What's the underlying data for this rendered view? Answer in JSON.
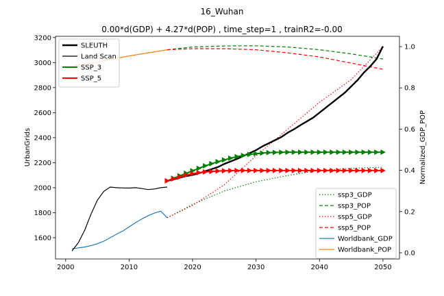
{
  "chart_data": {
    "type": "line",
    "suptitle": "16_Wuhan",
    "title": "0.00*d(GDP) + 4.27*d(POP) , time_step=1 , trainR2=-0.00",
    "xlabel": "",
    "ylabel": "UrbanGrids",
    "y2label": "Normalized_GDP_POP",
    "xlim": [
      1998.4,
      2052.6
    ],
    "ylim": [
      1430,
      3210
    ],
    "y2lim": [
      -0.03,
      1.05
    ],
    "xticks": [
      2000,
      2010,
      2020,
      2030,
      2040,
      2050
    ],
    "yticks": [
      1600,
      1800,
      2000,
      2200,
      2400,
      2600,
      2800,
      3000,
      3200
    ],
    "y2ticks": [
      "0.0",
      "0.2",
      "0.4",
      "0.6",
      "0.8",
      "1.0"
    ],
    "legend_left": {
      "position": "top-left",
      "entries": [
        "SLEUTH",
        "Land Scan",
        "SSP_3",
        "SSP_5"
      ]
    },
    "legend_right": {
      "position": "lower-right",
      "entries": [
        "ssp3_GDP",
        "ssp3_POP",
        "ssp5_GDP",
        "ssp5_POP",
        "Worldbank_GDP",
        "Worldbank_POP"
      ]
    },
    "colors": {
      "sleuth": "#000000",
      "landscan": "#000000",
      "ssp3": "#008000",
      "ssp5": "#ff0000",
      "worldbank_gdp": "#1f77b4",
      "worldbank_pop": "#ff7f0e"
    },
    "series_left_axis": [
      {
        "name": "SLEUTH",
        "x": [
          2016,
          2017,
          2018,
          2019,
          2020,
          2021,
          2022,
          2023,
          2024,
          2025,
          2026,
          2027,
          2028,
          2029,
          2030,
          2031,
          2032,
          2033,
          2034,
          2035,
          2036,
          2037,
          2038,
          2039,
          2040,
          2041,
          2042,
          2043,
          2044,
          2045,
          2046,
          2047,
          2048,
          2049,
          2050
        ],
        "y": [
          2055,
          2066,
          2080,
          2093,
          2102,
          2115,
          2132,
          2148,
          2165,
          2190,
          2210,
          2230,
          2253,
          2276,
          2300,
          2330,
          2355,
          2380,
          2405,
          2440,
          2468,
          2500,
          2530,
          2560,
          2600,
          2640,
          2680,
          2720,
          2760,
          2810,
          2860,
          2920,
          2970,
          3030,
          3130
        ]
      },
      {
        "name": "Land Scan",
        "x": [
          2001,
          2002,
          2003,
          2004,
          2005,
          2006,
          2007,
          2008,
          2009,
          2010,
          2011,
          2012,
          2013,
          2014,
          2015,
          2016
        ],
        "y": [
          1495,
          1560,
          1660,
          1790,
          1900,
          1970,
          2005,
          2000,
          1998,
          1997,
          2000,
          1993,
          1985,
          1990,
          2000,
          2005
        ]
      },
      {
        "name": "SSP_3",
        "marker": "triangle-right",
        "x": [
          2016,
          2017,
          2018,
          2019,
          2020,
          2021,
          2022,
          2023,
          2024,
          2025,
          2026,
          2027,
          2028,
          2029,
          2030,
          2031,
          2032,
          2033,
          2034,
          2035,
          2036,
          2037,
          2038,
          2039,
          2040,
          2041,
          2042,
          2043,
          2044,
          2045,
          2046,
          2047,
          2048,
          2049,
          2050
        ],
        "y": [
          2055,
          2075,
          2095,
          2115,
          2135,
          2155,
          2175,
          2192,
          2208,
          2222,
          2236,
          2248,
          2258,
          2266,
          2272,
          2277,
          2280,
          2282,
          2283,
          2284,
          2284,
          2284,
          2284,
          2284,
          2284,
          2284,
          2284,
          2284,
          2284,
          2284,
          2284,
          2284,
          2284,
          2284,
          2284
        ]
      },
      {
        "name": "SSP_5",
        "marker": "triangle-right",
        "x": [
          2016,
          2017,
          2018,
          2019,
          2020,
          2021,
          2022,
          2023,
          2024,
          2025,
          2026,
          2027,
          2028,
          2029,
          2030,
          2031,
          2032,
          2033,
          2034,
          2035,
          2036,
          2037,
          2038,
          2039,
          2040,
          2041,
          2042,
          2043,
          2044,
          2045,
          2046,
          2047,
          2048,
          2049,
          2050
        ],
        "y": [
          2055,
          2070,
          2085,
          2100,
          2112,
          2120,
          2126,
          2130,
          2133,
          2135,
          2136,
          2137,
          2137,
          2137,
          2137,
          2137,
          2137,
          2137,
          2137,
          2137,
          2137,
          2137,
          2137,
          2137,
          2137,
          2137,
          2137,
          2137,
          2137,
          2137,
          2137,
          2137,
          2137,
          2137,
          2137
        ]
      }
    ],
    "series_right_axis": [
      {
        "name": "ssp3_GDP",
        "style": "dotted",
        "x": [
          2016,
          2020,
          2025,
          2030,
          2035,
          2040,
          2045,
          2050
        ],
        "y": [
          0.17,
          0.235,
          0.3,
          0.345,
          0.375,
          0.4,
          0.41,
          0.415
        ]
      },
      {
        "name": "ssp3_POP",
        "style": "dashed",
        "x": [
          2016,
          2020,
          2025,
          2030,
          2035,
          2040,
          2045,
          2050
        ],
        "y": [
          0.985,
          0.998,
          1.003,
          1.004,
          0.998,
          0.985,
          0.965,
          0.94
        ]
      },
      {
        "name": "ssp5_GDP",
        "style": "dotted",
        "x": [
          2016,
          2020,
          2025,
          2030,
          2035,
          2040,
          2045,
          2050
        ],
        "y": [
          0.17,
          0.23,
          0.33,
          0.47,
          0.6,
          0.73,
          0.84,
          1.0
        ]
      },
      {
        "name": "ssp5_POP",
        "style": "dashed",
        "x": [
          2016,
          2020,
          2025,
          2030,
          2035,
          2040,
          2045,
          2050
        ],
        "y": [
          0.985,
          0.99,
          0.99,
          0.985,
          0.97,
          0.95,
          0.92,
          0.89
        ]
      },
      {
        "name": "Worldbank_GDP",
        "style": "solid",
        "x": [
          2001,
          2002,
          2003,
          2004,
          2005,
          2006,
          2007,
          2008,
          2009,
          2010,
          2011,
          2012,
          2013,
          2014,
          2015,
          2016
        ],
        "y": [
          0.02,
          0.024,
          0.028,
          0.035,
          0.044,
          0.056,
          0.073,
          0.09,
          0.106,
          0.126,
          0.146,
          0.164,
          0.18,
          0.193,
          0.202,
          0.17
        ]
      },
      {
        "name": "Worldbank_POP",
        "style": "solid",
        "x": [
          2001,
          2005,
          2010,
          2016
        ],
        "y": [
          0.905,
          0.925,
          0.955,
          0.985
        ]
      }
    ]
  }
}
